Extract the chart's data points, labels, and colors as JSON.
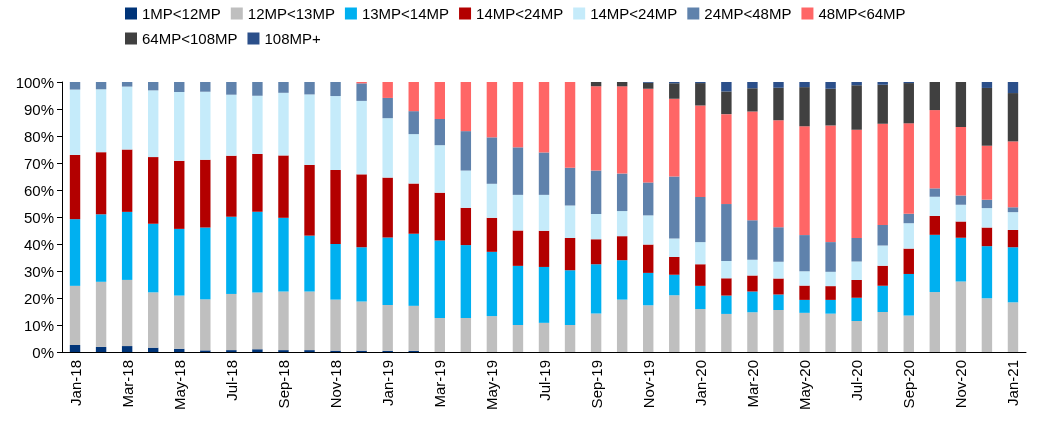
{
  "chart_data": {
    "type": "bar",
    "stacked": true,
    "legend": "top",
    "categories": [
      "Jan-18",
      null,
      "Mar-18",
      null,
      "May-18",
      null,
      "Jul-18",
      null,
      "Sep-18",
      null,
      "Nov-18",
      null,
      "Jan-19",
      null,
      "Mar-19",
      null,
      "May-19",
      null,
      "Jul-19",
      null,
      "Sep-19",
      null,
      "Nov-19",
      null,
      "Jan-20",
      null,
      "Mar-20",
      null,
      "May-20",
      null,
      "Jul-20",
      null,
      "Sep-20",
      null,
      "Nov-20",
      null,
      "Jan-21"
    ],
    "ylim": [
      0,
      100
    ],
    "yticks": [
      {
        "value": 0,
        "label": "0%"
      },
      {
        "value": 10,
        "label": "10%"
      },
      {
        "value": 20,
        "label": "20%"
      },
      {
        "value": 30,
        "label": "30%"
      },
      {
        "value": 40,
        "label": "40%"
      },
      {
        "value": 50,
        "label": "50%"
      },
      {
        "value": 60,
        "label": "60%"
      },
      {
        "value": 70,
        "label": "70%"
      },
      {
        "value": 80,
        "label": "80%"
      },
      {
        "value": 90,
        "label": "90%"
      },
      {
        "value": 100,
        "label": "100%"
      }
    ],
    "series": [
      {
        "name": "1MP<12MP",
        "color": "#003478",
        "values": [
          2.6,
          1.9,
          2.2,
          1.6,
          1.2,
          0.6,
          0.7,
          1.0,
          0.7,
          0.7,
          0.5,
          0.5,
          0.4,
          0.4,
          0,
          0,
          0,
          0,
          0,
          0,
          0,
          0,
          0,
          0,
          0,
          0,
          0,
          0,
          0,
          0,
          0,
          0,
          0,
          0,
          0,
          0,
          0
        ]
      },
      {
        "name": "12MP<13MP",
        "color": "#bfbfbf",
        "values": [
          21.9,
          24.1,
          24.5,
          20.5,
          19.7,
          18.9,
          20.8,
          21.0,
          21.7,
          21.7,
          18.9,
          18.2,
          17.0,
          16.7,
          12.6,
          12.6,
          13.3,
          10.0,
          10.8,
          10.0,
          14.3,
          19.4,
          17.3,
          21.0,
          15.9,
          14.1,
          14.7,
          15.6,
          14.5,
          14.2,
          11.5,
          14.8,
          13.5,
          22.2,
          26.1,
          19.9,
          18.4
        ]
      },
      {
        "name": "13MP<14MP",
        "color": "#00b0f0",
        "values": [
          24.7,
          25.0,
          25.2,
          25.4,
          24.7,
          26.6,
          28.6,
          29.9,
          27.3,
          20.7,
          20.6,
          20.1,
          25.0,
          26.7,
          28.7,
          27.0,
          23.8,
          21.9,
          20.7,
          20.3,
          18.2,
          14.6,
          12.0,
          7.6,
          8.6,
          6.8,
          7.7,
          5.7,
          4.8,
          5.1,
          8.6,
          9.7,
          15.4,
          21.2,
          16.2,
          19.3,
          20.4
        ]
      },
      {
        "name": "14MP<24MP",
        "color": "#b30000",
        "values": [
          23.8,
          23.0,
          23.1,
          24.7,
          25.2,
          25.1,
          22.6,
          21.4,
          23.1,
          26.2,
          27.4,
          27.0,
          22.2,
          18.6,
          17.7,
          13.8,
          12.6,
          13.1,
          13.4,
          11.9,
          9.3,
          8.9,
          10.5,
          6.6,
          8.0,
          6.4,
          5.9,
          5.9,
          5.3,
          5.1,
          6.6,
          7.4,
          9.4,
          7.0,
          6.0,
          6.9,
          6.4
        ]
      },
      {
        "name": "14MP<24MP",
        "color": "#c5ebfa",
        "values": [
          24.2,
          23.3,
          23.3,
          24.7,
          25.5,
          25.2,
          22.6,
          21.6,
          23.2,
          26.1,
          27.4,
          27.2,
          22.0,
          18.3,
          17.6,
          13.8,
          12.6,
          13.2,
          13.3,
          12.1,
          9.3,
          9.3,
          10.8,
          6.8,
          8.2,
          6.4,
          5.9,
          6.2,
          5.3,
          5.3,
          6.8,
          7.5,
          9.4,
          7.1,
          6.2,
          7.2,
          6.6
        ]
      },
      {
        "name": "24MP<48MP",
        "color": "#5f82ac",
        "values": [
          2.8,
          2.7,
          1.7,
          3.1,
          3.7,
          3.6,
          4.7,
          5.1,
          4.0,
          4.6,
          5.2,
          6.5,
          7.5,
          8.5,
          9.7,
          14.6,
          17.2,
          17.6,
          15.7,
          13.9,
          16.1,
          13.9,
          12.2,
          23.0,
          16.7,
          21.1,
          14.6,
          12.8,
          13.4,
          11.0,
          8.7,
          7.6,
          3.5,
          3.1,
          3.5,
          3.1,
          1.8
        ]
      },
      {
        "name": "48MP<64MP",
        "color": "#ff6666",
        "values": [
          0,
          0,
          0,
          0,
          0,
          0,
          0,
          0,
          0,
          0,
          0,
          0.5,
          5.9,
          10.8,
          13.7,
          18.2,
          20.5,
          24.2,
          26.1,
          31.8,
          31.2,
          32.3,
          34.7,
          28.8,
          33.9,
          33.3,
          40.3,
          39.6,
          40.3,
          43.2,
          40.1,
          37.5,
          33.5,
          29.0,
          25.3,
          20.0,
          24.4
        ]
      },
      {
        "name": "64MP<108MP",
        "color": "#404040",
        "values": [
          0,
          0,
          0,
          0,
          0,
          0,
          0,
          0,
          0,
          0,
          0,
          0,
          0,
          0,
          0,
          0,
          0,
          0,
          0,
          0,
          1.6,
          1.6,
          2.2,
          5.7,
          8.3,
          8.4,
          8.6,
          12.1,
          14.5,
          13.6,
          16.5,
          14.5,
          14.9,
          10.4,
          16.7,
          21.4,
          17.9
        ]
      },
      {
        "name": "108MP+",
        "color": "#2b4f8a",
        "values": [
          0,
          0,
          0,
          0,
          0,
          0,
          0,
          0,
          0,
          0,
          0,
          0,
          0,
          0,
          0,
          0,
          0,
          0,
          0,
          0,
          0,
          0,
          0.3,
          0.5,
          0.4,
          3.5,
          2.3,
          2.1,
          1.9,
          2.5,
          1.2,
          1.0,
          0.4,
          0,
          0,
          2.2,
          4.1
        ]
      }
    ]
  }
}
